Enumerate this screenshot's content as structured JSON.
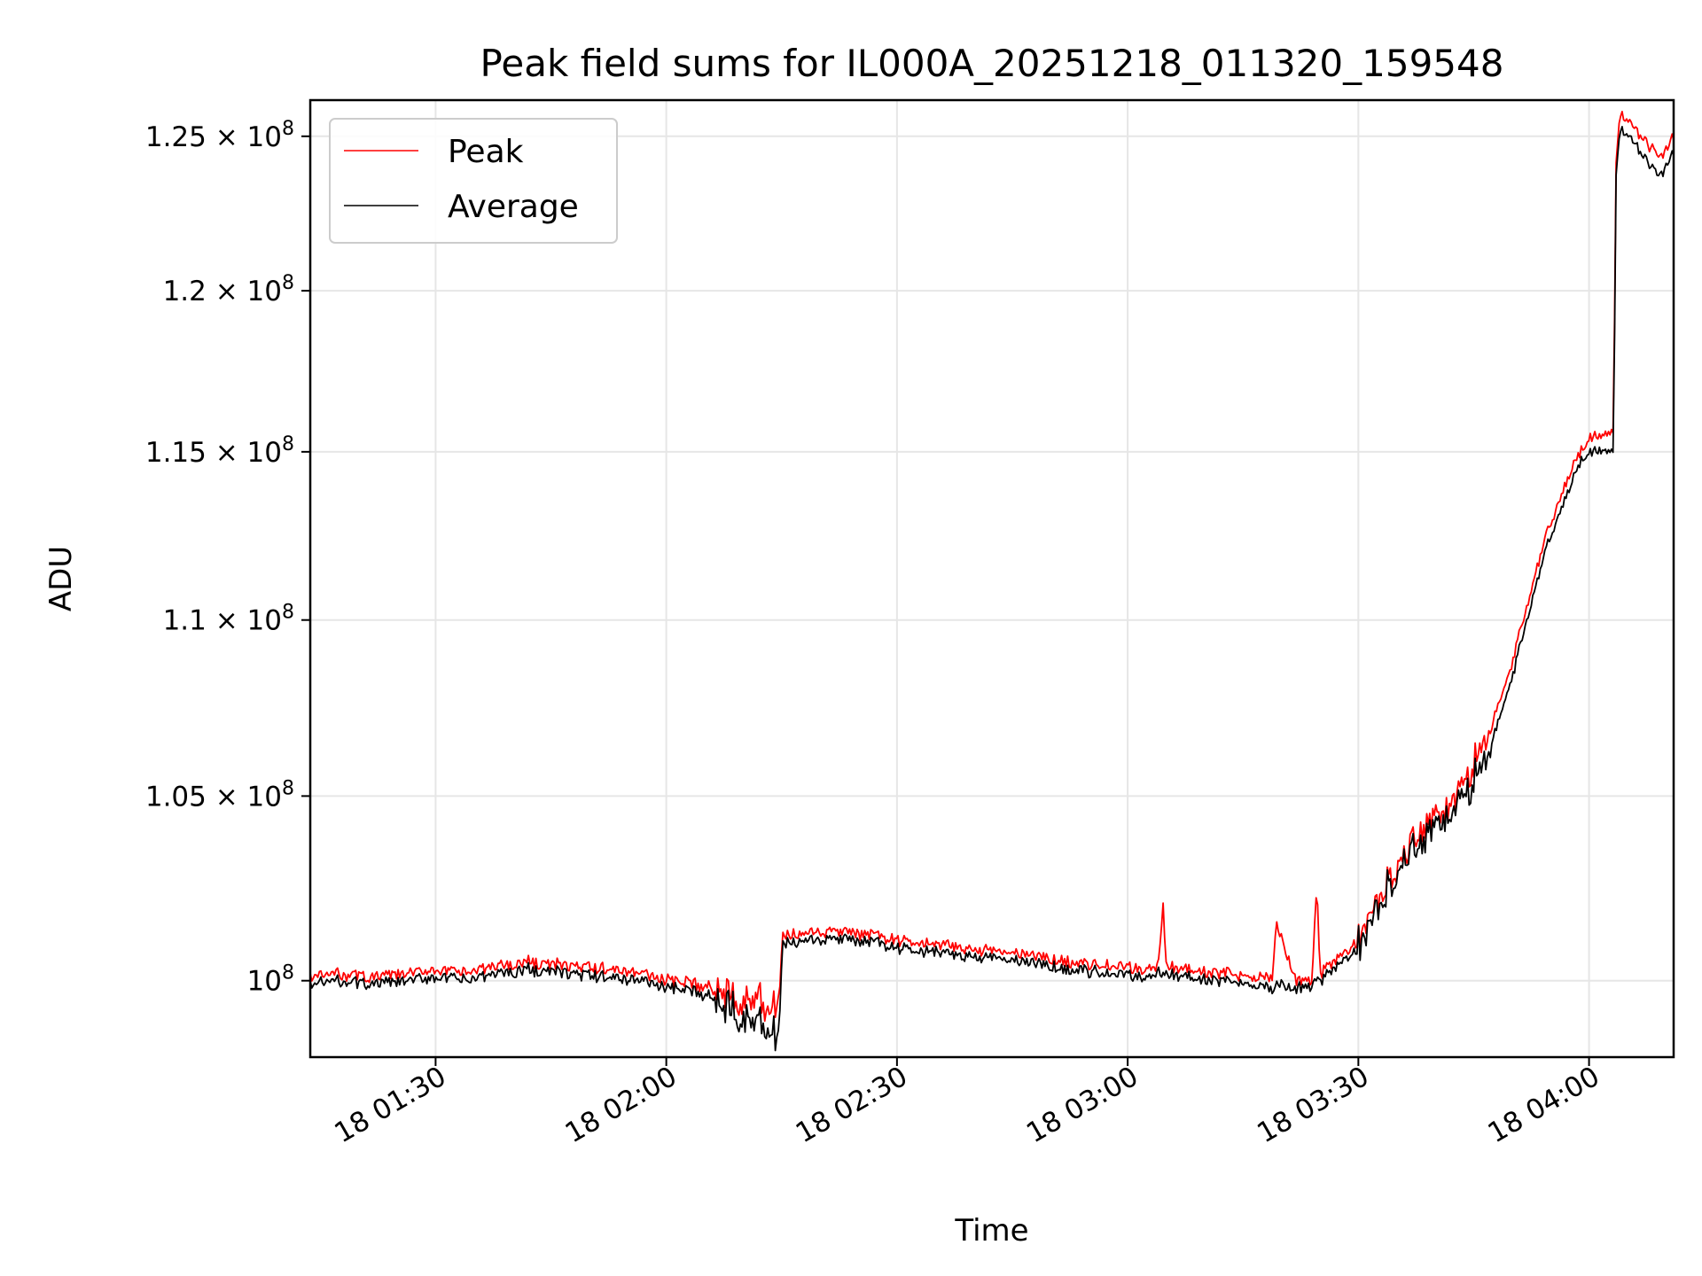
{
  "chart_data": {
    "type": "line",
    "title": "Peak field sums for IL000A_20251218_011320_159548",
    "xlabel": "Time",
    "ylabel": "ADU",
    "y_scale": "log",
    "xlim_minutes": [
      71.7,
      249.0
    ],
    "ylim": [
      98000000,
      126200000
    ],
    "grid": true,
    "legend_position": "upper-left",
    "x_ticks": [
      {
        "minute": 88,
        "label": "18 01:30"
      },
      {
        "minute": 118,
        "label": "18 02:00"
      },
      {
        "minute": 148,
        "label": "18 02:30"
      },
      {
        "minute": 178,
        "label": "18 03:00"
      },
      {
        "minute": 208,
        "label": "18 03:30"
      },
      {
        "minute": 238,
        "label": "18 04:00"
      }
    ],
    "y_ticks": [
      {
        "value": 100000000,
        "mantissa": "",
        "exponent": "8"
      },
      {
        "value": 105000000,
        "mantissa": "1.05",
        "exponent": "8"
      },
      {
        "value": 110000000,
        "mantissa": "1.1",
        "exponent": "8"
      },
      {
        "value": 115000000,
        "mantissa": "1.15",
        "exponent": "8"
      },
      {
        "value": 120000000,
        "mantissa": "1.2",
        "exponent": "8"
      },
      {
        "value": 125000000,
        "mantissa": "1.25",
        "exponent": "8"
      }
    ],
    "series": [
      {
        "name": "Peak",
        "color": "#ff0000",
        "x_minutes": [
          71.7,
          75,
          80,
          85,
          88,
          92,
          96,
          100,
          105,
          110,
          115,
          118,
          122,
          125,
          127,
          129,
          131,
          132.6,
          133,
          135,
          140,
          145,
          150,
          155,
          160,
          165,
          170,
          175,
          180,
          182,
          182.6,
          183,
          185,
          190,
          195,
          196.8,
          197.3,
          200,
          202,
          202.6,
          203,
          205,
          208,
          210,
          212,
          215,
          218,
          220,
          222,
          225,
          228,
          230,
          232,
          234,
          236,
          237,
          238,
          240,
          241.2,
          241.5,
          242,
          244,
          246,
          247.5,
          249
        ],
        "values": [
          100100000,
          100200000,
          100100000,
          100200000,
          100300000,
          100200000,
          100400000,
          100500000,
          100400000,
          100300000,
          100200000,
          100000000,
          99900000,
          99800000,
          99700000,
          99600000,
          99400000,
          99200000,
          101200000,
          101200000,
          101300000,
          101200000,
          101000000,
          100900000,
          100800000,
          100700000,
          100500000,
          100400000,
          100300000,
          100400000,
          102100000,
          100400000,
          100300000,
          100200000,
          100100000,
          100100000,
          101500000,
          100000000,
          100000000,
          102600000,
          100200000,
          100500000,
          101100000,
          101800000,
          102800000,
          103800000,
          104500000,
          104800000,
          105400000,
          106800000,
          108700000,
          110500000,
          112200000,
          113500000,
          114600000,
          115100000,
          115400000,
          115600000,
          115700000,
          124200000,
          125800000,
          125200000,
          124600000,
          124400000,
          125000000
        ]
      },
      {
        "name": "Average",
        "color": "#000000",
        "x_minutes": [
          71.7,
          75,
          80,
          85,
          88,
          92,
          96,
          100,
          105,
          110,
          115,
          118,
          122,
          125,
          127,
          129,
          131,
          132.6,
          133,
          135,
          140,
          145,
          150,
          155,
          160,
          165,
          170,
          175,
          180,
          182,
          182.6,
          183,
          185,
          190,
          195,
          196.8,
          197.3,
          200,
          202,
          202.6,
          203,
          205,
          208,
          210,
          212,
          215,
          218,
          220,
          222,
          225,
          228,
          230,
          232,
          234,
          236,
          237,
          238,
          240,
          241.2,
          241.5,
          242,
          244,
          246,
          247.5,
          249
        ],
        "values": [
          99900000,
          100000000,
          99900000,
          100000000,
          100100000,
          100000000,
          100200000,
          100300000,
          100200000,
          100100000,
          100000000,
          99800000,
          99700000,
          99500000,
          99300000,
          99100000,
          98800000,
          98300000,
          101000000,
          101000000,
          101100000,
          101000000,
          100800000,
          100700000,
          100600000,
          100500000,
          100300000,
          100200000,
          100100000,
          100200000,
          100200000,
          100200000,
          100100000,
          100000000,
          99900000,
          99800000,
          99900000,
          99800000,
          99800000,
          100000000,
          100000000,
          100300000,
          100900000,
          101600000,
          102600000,
          103600000,
          104200000,
          104500000,
          105000000,
          106300000,
          108300000,
          110100000,
          111800000,
          113100000,
          114200000,
          114800000,
          115000000,
          115100000,
          115100000,
          123800000,
          125300000,
          124700000,
          124000000,
          123800000,
          124500000
        ]
      }
    ]
  }
}
